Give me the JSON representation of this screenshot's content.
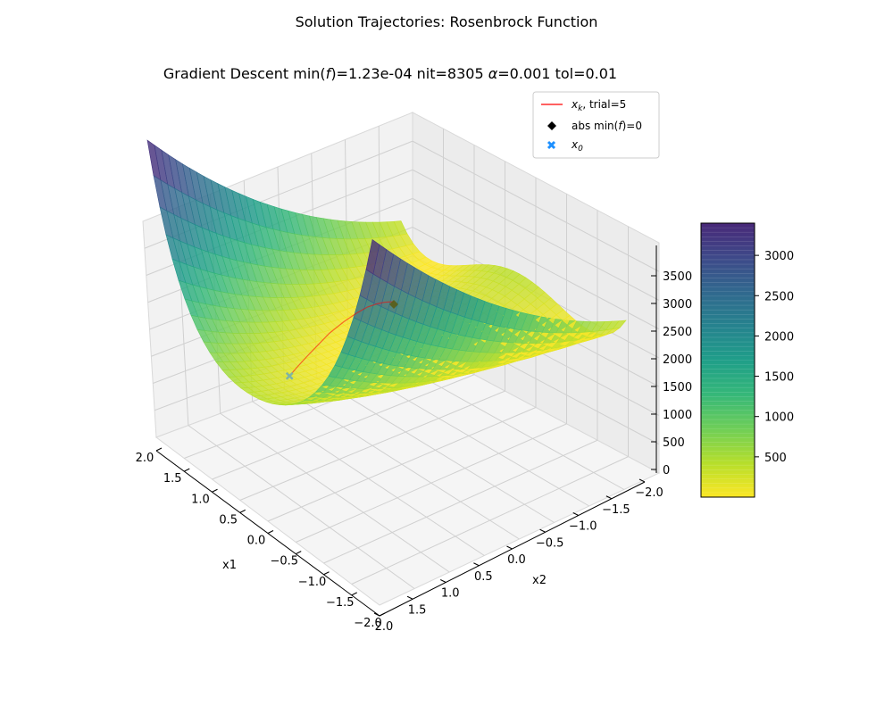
{
  "figure": {
    "suptitle": "Solution Trajectories: Rosenbrock Function"
  },
  "chart_data": {
    "type": "surface3d",
    "title": {
      "prefix": "Gradient Descent min(",
      "var": "f",
      "mid": ")=1.23e-04 nit=8305 ",
      "alpha": "α",
      "suffix": "=0.001 tol=0.01"
    },
    "function": "rosenbrock",
    "xlabel": "x1",
    "ylabel": "x2",
    "x1_range": [
      -2,
      2
    ],
    "x2_range": [
      -2,
      2
    ],
    "z_range": [
      0,
      3600
    ],
    "x1_ticks": [
      "2.0",
      "1.5",
      "1.0",
      "0.5",
      "0.0",
      "−0.5",
      "−1.0",
      "−1.5",
      "−2.0"
    ],
    "x2_ticks": [
      "−2.0",
      "−1.5",
      "−1.0",
      "−0.5",
      "0.0",
      "0.5",
      "1.0",
      "1.5",
      "2.0"
    ],
    "z_ticks": [
      "0",
      "500",
      "1000",
      "1500",
      "2000",
      "2500",
      "3000",
      "3500"
    ],
    "colormap": "viridis_r",
    "colorbar": {
      "range": [
        0,
        3400
      ],
      "ticks": [
        "500",
        "1000",
        "1500",
        "2000",
        "2500",
        "3000"
      ]
    },
    "legend": {
      "placement": "upper-right",
      "entries": [
        {
          "label_prefix": "x",
          "label_sub": "k",
          "label_suffix": ", trial=5",
          "marker": "line",
          "color": "#ff0000"
        },
        {
          "label_prefix": "abs min(",
          "label_italic": "f",
          "label_suffix": ")=0",
          "marker": "diamond",
          "color": "#000000"
        },
        {
          "label_prefix": "x",
          "label_sub": "0",
          "label_suffix": "",
          "marker": "x-mark",
          "color": "#1e90ff"
        }
      ]
    },
    "global_minimum": {
      "x1": 1,
      "x2": 1,
      "f": 0
    },
    "start_point": {
      "x1": 0.6,
      "x2": -1.0
    },
    "trajectory": {
      "x1": [
        0.6,
        0.7,
        0.8,
        0.9,
        1.02,
        1.1,
        1.14,
        1.15,
        1.12,
        1.08,
        1.04,
        1.02,
        1.0
      ],
      "x2": [
        -1.0,
        -0.78,
        -0.55,
        -0.3,
        0.0,
        0.3,
        0.55,
        0.72,
        0.84,
        0.92,
        0.96,
        0.98,
        1.0
      ]
    }
  }
}
